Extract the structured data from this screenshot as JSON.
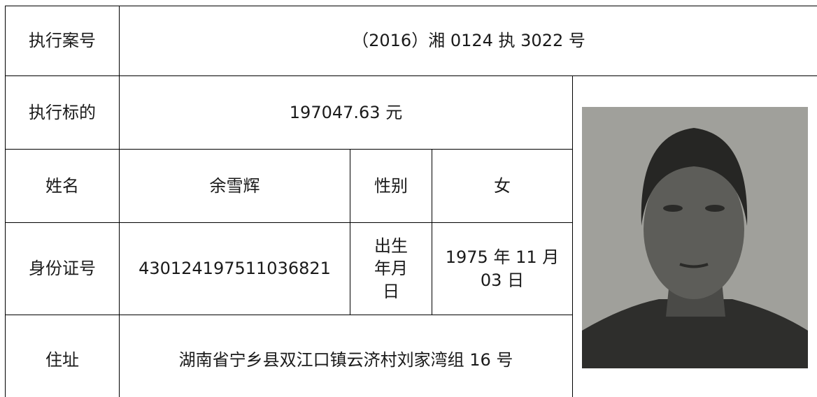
{
  "table": {
    "case_no_label": "执行案号",
    "case_no": "（2016）湘 0124 执 3022 号",
    "amount_label": "执行标的",
    "amount": "197047.63 元",
    "name_label": "姓名",
    "name": "余雪辉",
    "gender_label": "性别",
    "gender": "女",
    "id_label": "身份证号",
    "id_number": "430124197511036821",
    "birth_label": "出生年月日",
    "birth_date": "1975 年 11 月 03 日",
    "address_label": "住址",
    "address": "湖南省宁乡县双江口镇云济村刘家湾组 16 号"
  }
}
